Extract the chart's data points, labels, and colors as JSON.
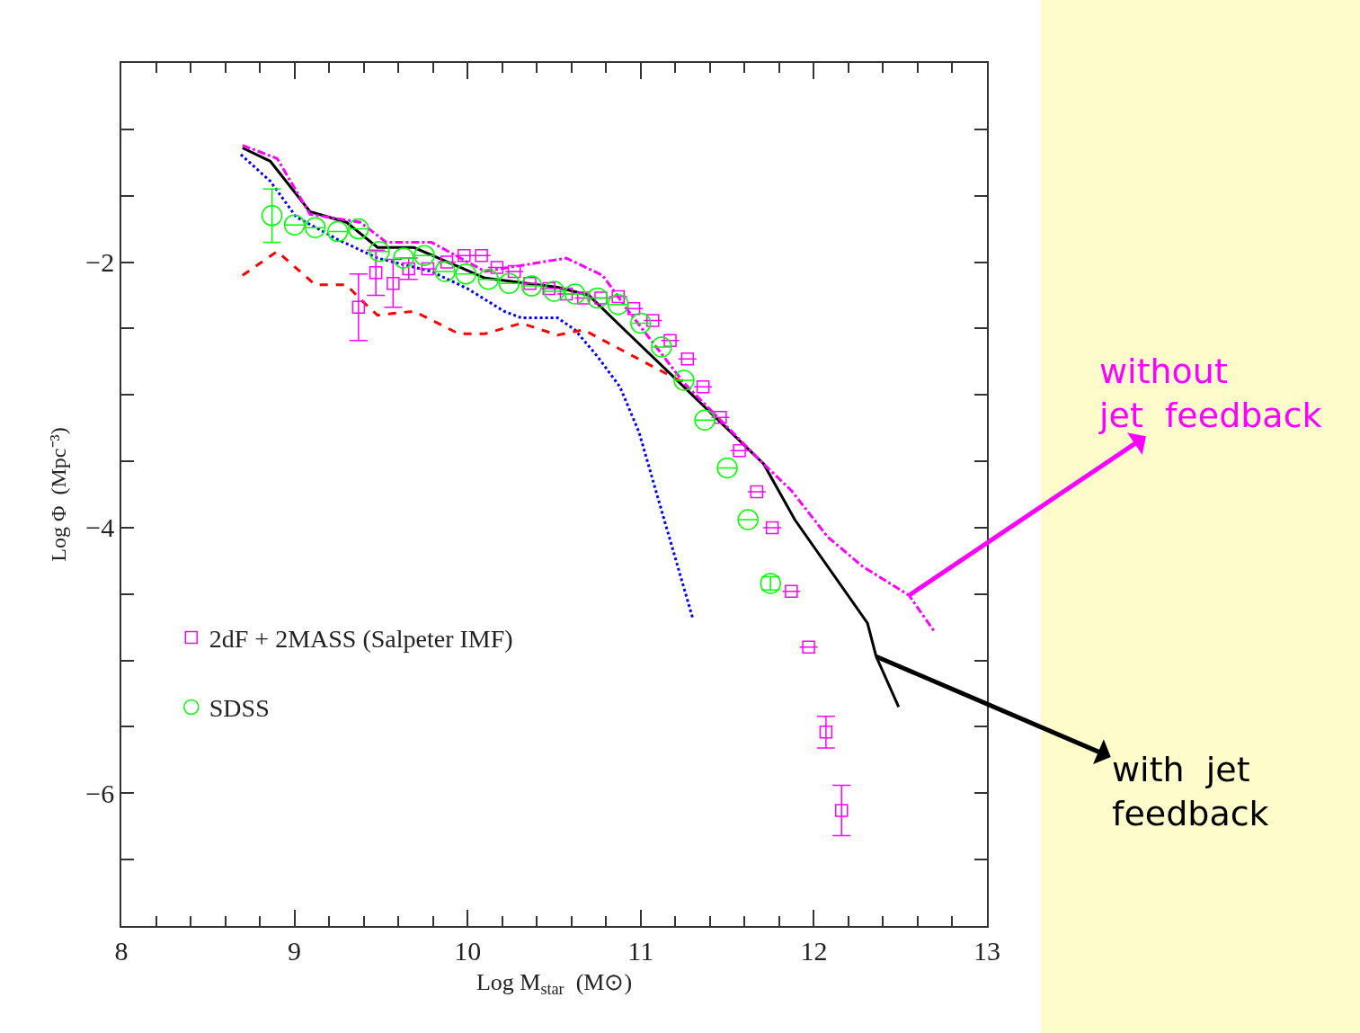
{
  "chart_data": {
    "type": "line",
    "xlabel": "Log M$_{star}$  (M⊙)",
    "ylabel": "Log Φ  (Mpc⁻³)",
    "xlim": [
      8,
      13
    ],
    "ylim": [
      -7,
      -0.5
    ],
    "xticks": [
      8,
      {
        "value": 8.2,
        "label": null
      },
      {
        "value": 8.4,
        "label": null
      },
      {
        "value": 8.6,
        "label": null
      },
      {
        "value": 8.8,
        "label": null
      },
      9,
      {
        "value": 9.2,
        "label": null
      },
      {
        "value": 9.4,
        "label": null
      },
      {
        "value": 9.6,
        "label": null
      },
      {
        "value": 9.8,
        "label": null
      },
      10,
      {
        "value": 10.2,
        "label": null
      },
      {
        "value": 10.4,
        "label": null
      },
      {
        "value": 10.6,
        "label": null
      },
      {
        "value": 10.8,
        "label": null
      },
      11,
      {
        "value": 11.2,
        "label": null
      },
      {
        "value": 11.4,
        "label": null
      },
      {
        "value": 11.6,
        "label": null
      },
      {
        "value": 11.8,
        "label": null
      },
      12,
      {
        "value": 12.2,
        "label": null
      },
      {
        "value": 12.4,
        "label": null
      },
      {
        "value": 12.6,
        "label": null
      },
      {
        "value": 12.8,
        "label": null
      },
      13
    ],
    "yticks": [
      {
        "value": -7,
        "label": null
      },
      {
        "value": -6.5,
        "label": null
      },
      {
        "value": -6,
        "label": "−6"
      },
      {
        "value": -5.5,
        "label": null
      },
      {
        "value": -5,
        "label": null
      },
      {
        "value": -4.5,
        "label": null
      },
      {
        "value": -4,
        "label": "−4"
      },
      {
        "value": -3.5,
        "label": null
      },
      {
        "value": -3,
        "label": null
      },
      {
        "value": -2.5,
        "label": null
      },
      {
        "value": -2,
        "label": "−2"
      },
      {
        "value": -1.5,
        "label": null
      },
      {
        "value": -1,
        "label": null
      }
    ],
    "legend": "bottom left",
    "series": [
      {
        "color": "#000000",
        "line_style": "solid",
        "marker": "none",
        "x": [
          8.7,
          8.86,
          9.09,
          9.3,
          9.48,
          9.69,
          10.1,
          10.52,
          10.7,
          10.93,
          11.25,
          11.71,
          11.89,
          12.31,
          12.36,
          12.49
        ],
        "values": [
          -1.14,
          -1.24,
          -1.62,
          -1.7,
          -1.89,
          -1.89,
          -2.12,
          -2.19,
          -2.25,
          -2.54,
          -2.94,
          -3.52,
          -3.94,
          -4.72,
          -4.97,
          -5.35
        ]
      },
      {
        "color": "#ff00ff",
        "line_style": "dashdot",
        "marker": "none",
        "x": [
          8.7,
          8.9,
          9.09,
          9.38,
          9.53,
          9.79,
          10.1,
          10.57,
          10.78,
          10.93,
          11.25,
          11.71,
          11.87,
          12.08,
          12.28,
          12.55,
          12.7
        ],
        "values": [
          -1.12,
          -1.22,
          -1.64,
          -1.7,
          -1.85,
          -1.85,
          -2.07,
          -1.97,
          -2.1,
          -2.37,
          -2.91,
          -3.52,
          -3.72,
          -4.07,
          -4.29,
          -4.51,
          -4.79
        ]
      },
      {
        "color": "#0000ff",
        "line_style": "dotted",
        "marker": "none",
        "x": [
          8.69,
          8.86,
          9.01,
          9.25,
          9.48,
          9.79,
          10.0,
          10.21,
          10.31,
          10.52,
          10.62,
          10.75,
          10.88,
          10.99,
          11.14,
          11.3
        ],
        "values": [
          -1.19,
          -1.39,
          -1.66,
          -1.83,
          -1.97,
          -2.07,
          -2.2,
          -2.37,
          -2.42,
          -2.42,
          -2.51,
          -2.71,
          -2.94,
          -3.28,
          -3.96,
          -4.68
        ]
      },
      {
        "color": "#ff0000",
        "line_style": "dashed",
        "marker": "none",
        "x": [
          8.7,
          8.9,
          9.12,
          9.3,
          9.38,
          9.48,
          9.69,
          9.95,
          10.1,
          10.31,
          10.52,
          10.67,
          10.93,
          11.25
        ],
        "values": [
          -2.1,
          -1.92,
          -2.17,
          -2.17,
          -2.28,
          -2.4,
          -2.37,
          -2.54,
          -2.54,
          -2.46,
          -2.55,
          -2.51,
          -2.69,
          -2.91
        ]
      },
      {
        "type": "scatter",
        "name": "2dF + 2MASS (Salpeter IMF)",
        "color": "#ff00ff",
        "marker": "square",
        "x": [
          9.37,
          9.47,
          9.57,
          9.66,
          9.77,
          9.88,
          9.98,
          10.08,
          10.17,
          10.27,
          10.36,
          10.47,
          10.57,
          10.67,
          10.77,
          10.87,
          10.96,
          11.07,
          11.17,
          11.27,
          11.36,
          11.46,
          11.57,
          11.67,
          11.76,
          11.87,
          11.97,
          12.07,
          12.16
        ],
        "values": [
          -2.34,
          -2.08,
          -2.16,
          -2.05,
          -2.05,
          -2.0,
          -1.95,
          -1.95,
          -2.04,
          -2.07,
          -2.16,
          -2.2,
          -2.24,
          -2.27,
          -2.27,
          -2.26,
          -2.35,
          -2.44,
          -2.59,
          -2.73,
          -2.94,
          -3.17,
          -3.42,
          -3.73,
          -4.0,
          -4.48,
          -4.9,
          -5.54,
          -6.13
        ],
        "errors": [
          0.25,
          0.17,
          0.18,
          0.08,
          null,
          null,
          null,
          null,
          null,
          null,
          null,
          null,
          null,
          null,
          null,
          null,
          null,
          null,
          null,
          null,
          null,
          null,
          null,
          null,
          null,
          null,
          null,
          0.12,
          0.19
        ]
      },
      {
        "type": "scatter",
        "name": "SDSS",
        "color": "#00ff00",
        "marker": "circle",
        "x": [
          8.87,
          9.0,
          9.12,
          9.25,
          9.37,
          9.49,
          9.63,
          9.75,
          9.87,
          9.99,
          10.12,
          10.24,
          10.37,
          10.5,
          10.62,
          10.75,
          10.87,
          11.0,
          11.12,
          11.25,
          11.37,
          11.5,
          11.62,
          11.75
        ],
        "values": [
          -1.65,
          -1.72,
          -1.74,
          -1.77,
          -1.75,
          -1.92,
          -1.97,
          -1.95,
          -2.07,
          -2.09,
          -2.13,
          -2.16,
          -2.18,
          -2.22,
          -2.24,
          -2.27,
          -2.32,
          -2.46,
          -2.64,
          -2.89,
          -3.19,
          -3.55,
          -3.94,
          -4.42
        ],
        "errors": [
          0.2,
          null,
          null,
          null,
          null,
          null,
          null,
          null,
          null,
          null,
          null,
          null,
          null,
          null,
          null,
          null,
          null,
          null,
          null,
          null,
          null,
          null,
          null,
          0.05
        ]
      }
    ],
    "annotations": [
      {
        "text": "without\njet  feedback",
        "x": 12.55,
        "y": -4.51
      },
      {
        "text": "with  jet\nfeedback",
        "x": 12.36,
        "y": -4.97
      }
    ]
  }
}
